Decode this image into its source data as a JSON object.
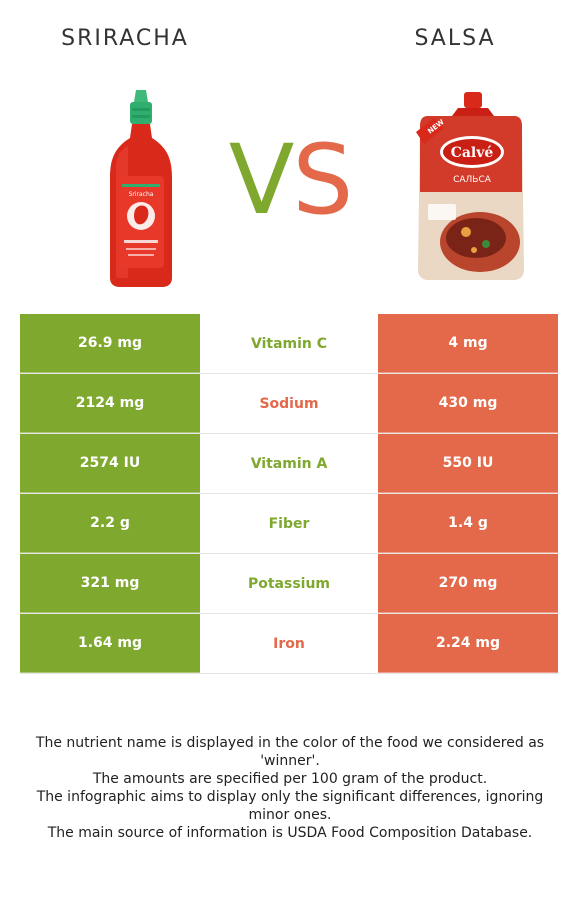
{
  "left_food": {
    "name": "SRIRACHA"
  },
  "right_food": {
    "name": "SALSA"
  },
  "vs": {
    "v": "V",
    "s": "S"
  },
  "colors": {
    "left": "#7fa82f",
    "right": "#e3694a"
  },
  "product_labels": {
    "sriracha_label": "Sriracha",
    "salsa_new": "NEW",
    "salsa_brand": "Calvé",
    "salsa_product": "САЛЬСА"
  },
  "rows": [
    {
      "nutrient": "Vitamin C",
      "left": "26.9 mg",
      "right": "4 mg",
      "winner": "left",
      "winner_color": "#7fa82f"
    },
    {
      "nutrient": "Sodium",
      "left": "2124 mg",
      "right": "430 mg",
      "winner": "right",
      "winner_color": "#e3694a"
    },
    {
      "nutrient": "Vitamin A",
      "left": "2574 IU",
      "right": "550 IU",
      "winner": "left",
      "winner_color": "#7fa82f"
    },
    {
      "nutrient": "Fiber",
      "left": "2.2 g",
      "right": "1.4 g",
      "winner": "left",
      "winner_color": "#7fa82f"
    },
    {
      "nutrient": "Potassium",
      "left": "321 mg",
      "right": "270 mg",
      "winner": "left",
      "winner_color": "#7fa82f"
    },
    {
      "nutrient": "Iron",
      "left": "1.64 mg",
      "right": "2.24 mg",
      "winner": "right",
      "winner_color": "#e3694a"
    }
  ],
  "footer": {
    "line1": "The nutrient name is displayed in the color of the food we considered as 'winner'.",
    "line2": "The amounts are specified per 100 gram of the product.",
    "line3": "The infographic aims to display only the significant differences, ignoring minor ones.",
    "line4": "The main source of information is USDA Food Composition Database."
  }
}
